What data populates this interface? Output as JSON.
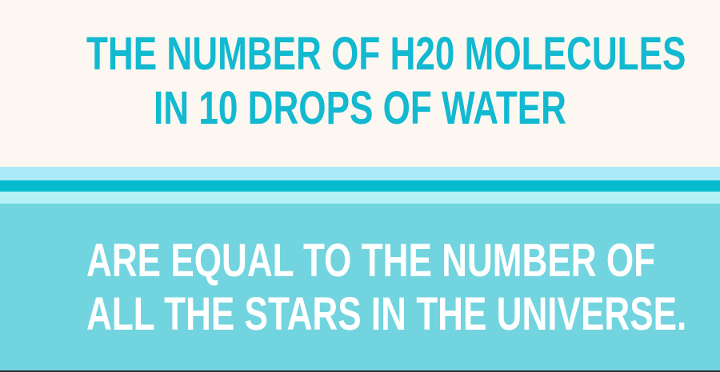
{
  "headline": {
    "line1": "THE NUMBER OF H20 MOLECULES",
    "line2": "IN 10 DROPS OF WATER"
  },
  "statement": {
    "line1": "ARE EQUAL TO THE NUMBER OF",
    "line2": "ALL THE STARS IN THE UNIVERSE."
  },
  "colors": {
    "cream_background": "#fcf7f0",
    "headline_teal": "#12b9d0",
    "stripe_light": "#a9ecf7",
    "stripe_dark": "#08bccf",
    "stripe_pale": "#b5f2f7",
    "panel_teal": "#72d4de",
    "statement_text": "#ffffff"
  }
}
